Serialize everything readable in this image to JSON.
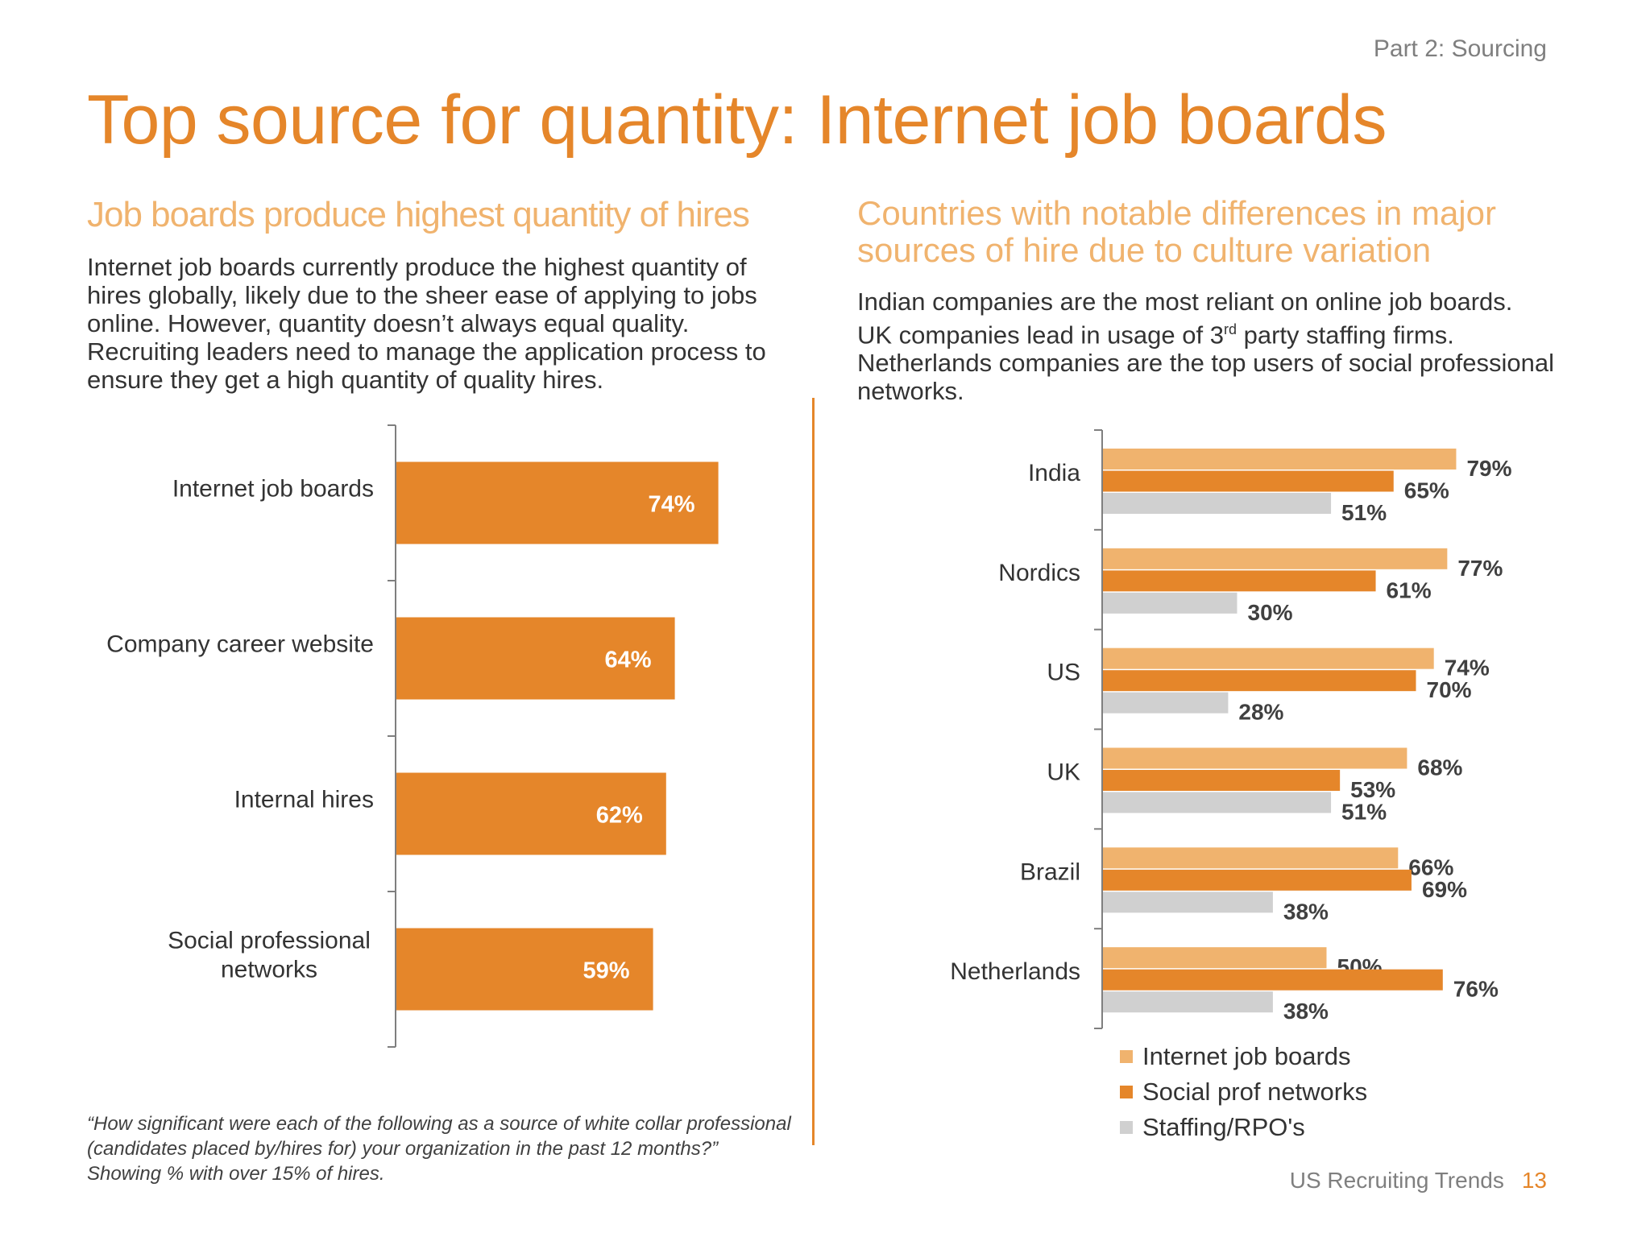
{
  "header": {
    "section": "Part 2: Sourcing",
    "title": "Top source for quantity: Internet job boards"
  },
  "left": {
    "heading": "Job boards produce highest quantity of hires",
    "body": "Internet job boards currently produce the highest quantity of hires globally, likely due to the sheer ease of applying to jobs online. However, quantity doesn’t always equal quality. Recruiting leaders need to manage the application process to ensure they get a high quantity of quality hires.",
    "footnote": "“How significant were each of the following as a source of white collar professional (candidates placed by/hires for) your organization in the past 12 months?” Showing % with over 15% of hires."
  },
  "right": {
    "heading": "Countries with notable differences in major sources of hire due to culture variation",
    "body_line1": "Indian companies are the most reliant on online job boards.",
    "body_line2_pre": "UK companies lead in usage of 3",
    "body_line2_sup": "rd",
    "body_line2_post": " party staffing firms.",
    "body_line3": "Netherlands companies are the top users of social professional networks."
  },
  "footer": {
    "text": "US Recruiting Trends",
    "page": "13"
  },
  "colors": {
    "accent": "#e5862a",
    "light_orange": "#f0b36e",
    "gray": "#d0d0d0",
    "axis": "#7f7f7f"
  },
  "chart_data": [
    {
      "type": "bar",
      "orientation": "horizontal",
      "categories": [
        "Internet job boards",
        "Company career website",
        "Internal hires",
        "Social professional networks"
      ],
      "values": [
        74,
        64,
        62,
        59
      ],
      "value_labels": [
        "74%",
        "64%",
        "62%",
        "59%"
      ],
      "unit": "%",
      "color": "#e5862a"
    },
    {
      "type": "bar",
      "orientation": "horizontal",
      "categories": [
        "India",
        "Nordics",
        "US",
        "UK",
        "Brazil",
        "Netherlands"
      ],
      "series": [
        {
          "name": "Internet job boards",
          "color": "#f0b36e",
          "values": [
            79,
            77,
            74,
            68,
            66,
            50
          ]
        },
        {
          "name": "Social prof networks",
          "color": "#e5862a",
          "values": [
            65,
            61,
            70,
            53,
            69,
            76
          ]
        },
        {
          "name": "Staffing/RPO's",
          "color": "#d0d0d0",
          "values": [
            51,
            30,
            28,
            51,
            38,
            38
          ]
        }
      ],
      "unit": "%",
      "legend_position": "bottom"
    }
  ]
}
